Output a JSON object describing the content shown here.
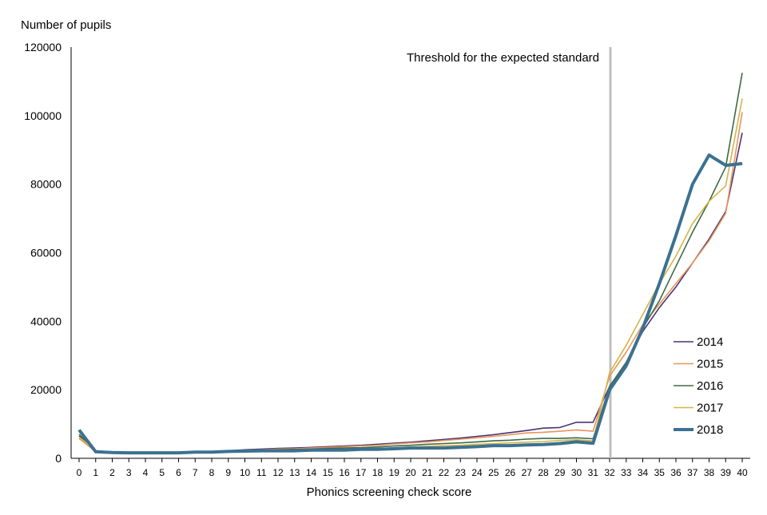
{
  "chart_data": {
    "type": "line",
    "ylabel": "Number of pupils",
    "xlabel": "Phonics screening check score",
    "x": [
      0,
      1,
      2,
      3,
      4,
      5,
      6,
      7,
      8,
      9,
      10,
      11,
      12,
      13,
      14,
      15,
      16,
      17,
      18,
      19,
      20,
      21,
      22,
      23,
      24,
      25,
      26,
      27,
      28,
      29,
      30,
      31,
      32,
      33,
      34,
      35,
      36,
      37,
      38,
      39,
      40
    ],
    "y_ticks": [
      0,
      20000,
      40000,
      60000,
      80000,
      100000,
      120000
    ],
    "ylim": [
      0,
      120000
    ],
    "grid": false,
    "legend_position": "right",
    "threshold": {
      "x": 32,
      "label": "Threshold for the expected standard",
      "color": "#bfbfbf"
    },
    "series": [
      {
        "name": "2014",
        "color": "#4a3474",
        "values": [
          6500,
          2000,
          1800,
          1700,
          1700,
          1700,
          1800,
          1900,
          2000,
          2200,
          2500,
          2700,
          2900,
          3000,
          3200,
          3400,
          3600,
          3800,
          4100,
          4400,
          4700,
          5100,
          5500,
          5900,
          6400,
          6900,
          7500,
          8100,
          8800,
          9000,
          10500,
          10500,
          21000,
          28000,
          37000,
          44000,
          50000,
          57000,
          64000,
          72000,
          95000
        ]
      },
      {
        "name": "2015",
        "color": "#e8955a",
        "values": [
          5800,
          1900,
          1700,
          1600,
          1600,
          1600,
          1700,
          1800,
          1900,
          2100,
          2300,
          2500,
          2700,
          2800,
          3000,
          3200,
          3400,
          3600,
          3800,
          4200,
          4500,
          4800,
          5200,
          5600,
          6000,
          6400,
          6900,
          7400,
          7600,
          7900,
          8300,
          7900,
          24000,
          31000,
          39000,
          45000,
          51000,
          57000,
          63500,
          71500,
          101000
        ]
      },
      {
        "name": "2016",
        "color": "#3b6b47",
        "values": [
          7000,
          2000,
          1700,
          1600,
          1600,
          1600,
          1600,
          1700,
          1800,
          2000,
          2200,
          2400,
          2500,
          2600,
          2700,
          2900,
          3000,
          3100,
          3300,
          3600,
          3800,
          4100,
          4300,
          4500,
          4800,
          5100,
          5300,
          5600,
          5800,
          5800,
          6000,
          5700,
          21000,
          28000,
          38000,
          46000,
          56000,
          66000,
          75000,
          85000,
          112500
        ]
      },
      {
        "name": "2017",
        "color": "#d4b44a",
        "values": [
          6200,
          2200,
          1900,
          1700,
          1600,
          1600,
          1600,
          1700,
          1800,
          2000,
          2100,
          2300,
          2300,
          2300,
          2400,
          2500,
          2600,
          2700,
          2800,
          3100,
          3300,
          3500,
          3700,
          3800,
          4100,
          4300,
          4500,
          4700,
          4900,
          5200,
          5400,
          5100,
          25000,
          33000,
          42000,
          51000,
          59000,
          68500,
          75000,
          79500,
          105000
        ]
      },
      {
        "name": "2018",
        "color": "#3b7191",
        "values": [
          8300,
          1900,
          1700,
          1600,
          1600,
          1600,
          1600,
          1800,
          1800,
          2000,
          2100,
          2200,
          2200,
          2200,
          2400,
          2400,
          2400,
          2600,
          2600,
          2800,
          3000,
          3000,
          3000,
          3200,
          3400,
          3700,
          3700,
          3900,
          4000,
          4300,
          4800,
          4400,
          20000,
          27000,
          38000,
          51000,
          65000,
          80000,
          88500,
          85500,
          86000
        ]
      }
    ]
  }
}
